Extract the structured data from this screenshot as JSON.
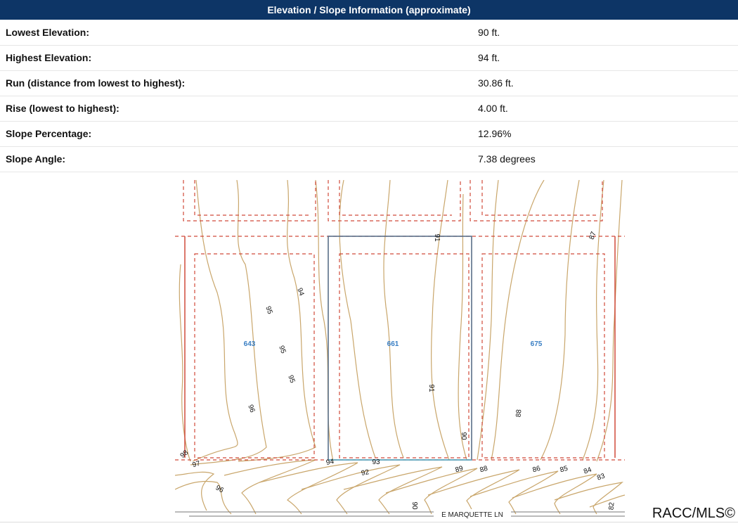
{
  "header": {
    "title": "Elevation / Slope Information (approximate)"
  },
  "table": {
    "rows": [
      {
        "label": "Lowest Elevation:",
        "value": "90 ft."
      },
      {
        "label": "Highest Elevation:",
        "value": "94 ft."
      },
      {
        "label": "Run (distance from lowest to highest):",
        "value": "30.86 ft."
      },
      {
        "label": "Rise (lowest to highest):",
        "value": "4.00 ft."
      },
      {
        "label": "Slope Percentage:",
        "value": "12.96%"
      },
      {
        "label": "Slope Angle:",
        "value": "7.38 degrees"
      }
    ]
  },
  "map": {
    "colors": {
      "contour": "#c9a66b",
      "boundary_dashed": "#d04a3a",
      "highlight": "#5a6f88",
      "lot_label": "#3a7fc4",
      "street_line": "#777777"
    },
    "lots": [
      "643",
      "661",
      "675"
    ],
    "street": "E MARQUETTE LN",
    "contour_labels": {
      "left": [
        "94",
        "95",
        "95",
        "95",
        "96",
        "98",
        "97",
        "96",
        "94"
      ],
      "middle": [
        "91",
        "91",
        "90",
        "93",
        "92",
        "90"
      ],
      "right": [
        "87",
        "88",
        "89",
        "88",
        "86",
        "85",
        "84",
        "83",
        "82"
      ]
    },
    "watermark": "RACC/MLS©"
  }
}
